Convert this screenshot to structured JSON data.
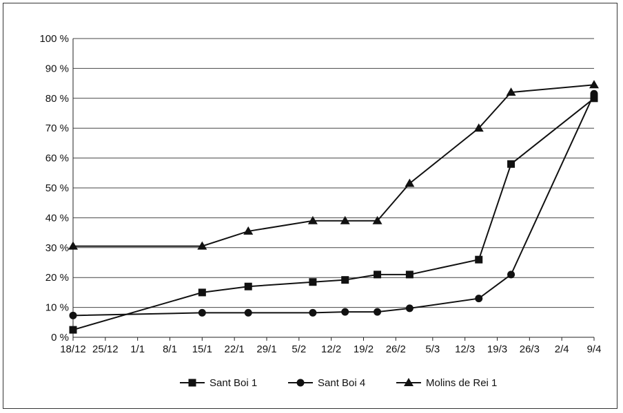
{
  "chart_data": {
    "type": "line",
    "title": "",
    "xlabel": "",
    "ylabel": "",
    "x_ticks": [
      "18/12",
      "25/12",
      "1/1",
      "8/1",
      "15/1",
      "22/1",
      "29/1",
      "5/2",
      "12/2",
      "19/2",
      "26/2",
      "5/3",
      "12/3",
      "19/3",
      "26/3",
      "2/4",
      "9/4"
    ],
    "y_ticks": [
      "0 %",
      "10 %",
      "20 %",
      "30 %",
      "40 %",
      "50 %",
      "60 %",
      "70 %",
      "80 %",
      "90 %",
      "100 %"
    ],
    "ylim": [
      0,
      100
    ],
    "grid": "horizontal",
    "legend_placement": "bottom",
    "series": [
      {
        "name": "Sant Boi 1",
        "marker": "square",
        "points": [
          {
            "x": "18/12",
            "y": 2.5
          },
          {
            "x": "15/1",
            "y": 15
          },
          {
            "x": "25/1",
            "y": 17
          },
          {
            "x": "8/2",
            "y": 18.5
          },
          {
            "x": "15/2",
            "y": 19.2
          },
          {
            "x": "22/2",
            "y": 21
          },
          {
            "x": "29/2",
            "y": 21
          },
          {
            "x": "15/3",
            "y": 26
          },
          {
            "x": "22/3",
            "y": 58
          },
          {
            "x": "9/4",
            "y": 80
          }
        ]
      },
      {
        "name": "Sant Boi 4",
        "marker": "circle",
        "points": [
          {
            "x": "18/12",
            "y": 7.3
          },
          {
            "x": "15/1",
            "y": 8.2
          },
          {
            "x": "25/1",
            "y": 8.2
          },
          {
            "x": "8/2",
            "y": 8.2
          },
          {
            "x": "15/2",
            "y": 8.5
          },
          {
            "x": "22/2",
            "y": 8.5
          },
          {
            "x": "29/2",
            "y": 9.7
          },
          {
            "x": "15/3",
            "y": 13
          },
          {
            "x": "22/3",
            "y": 21
          },
          {
            "x": "9/4",
            "y": 81.5
          }
        ]
      },
      {
        "name": "Molins de Rei 1",
        "marker": "triangle",
        "points": [
          {
            "x": "18/12",
            "y": 30.5
          },
          {
            "x": "15/1",
            "y": 30.5
          },
          {
            "x": "25/1",
            "y": 35.5
          },
          {
            "x": "8/2",
            "y": 39
          },
          {
            "x": "15/2",
            "y": 39
          },
          {
            "x": "22/2",
            "y": 39
          },
          {
            "x": "29/2",
            "y": 51.5
          },
          {
            "x": "15/3",
            "y": 70
          },
          {
            "x": "22/3",
            "y": 82
          },
          {
            "x": "9/4",
            "y": 84.5
          }
        ]
      }
    ]
  }
}
